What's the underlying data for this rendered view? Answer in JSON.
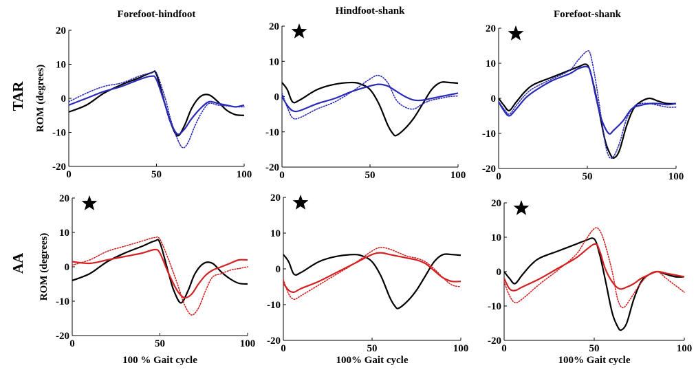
{
  "chart_data": [
    {
      "type": "line",
      "group": "TAR",
      "title": "Forefoot-hindfoot",
      "ylabel": "ROM (degrees)",
      "xlabel": "",
      "xlim": [
        0,
        100
      ],
      "ylim": [
        -20,
        20
      ],
      "xticks": [
        0,
        50,
        100
      ],
      "yticks": [
        -20,
        -10,
        0,
        10,
        20
      ],
      "significance_star": false,
      "series": [
        {
          "color": "#000000",
          "dash": "solid",
          "x": [
            0,
            10,
            20,
            30,
            40,
            47,
            50,
            55,
            58,
            62,
            66,
            70,
            75,
            80,
            85,
            90,
            95,
            100
          ],
          "y": [
            -4,
            -2,
            1.5,
            4,
            6,
            7.5,
            7,
            -2,
            -7,
            -11,
            -8,
            -3,
            0.5,
            1,
            -1,
            -3.5,
            -4.8,
            -5
          ]
        },
        {
          "color": "#2a2ab8",
          "dash": "solid",
          "x": [
            0,
            10,
            20,
            30,
            40,
            47,
            50,
            55,
            58,
            62,
            66,
            70,
            75,
            80,
            85,
            90,
            95,
            100
          ],
          "y": [
            -2,
            0,
            2,
            3.5,
            5.5,
            6.5,
            5.5,
            -2,
            -7,
            -10.5,
            -9,
            -6,
            -3,
            -1,
            -1.5,
            -2,
            -2.5,
            -2
          ]
        },
        {
          "color": "#2a2ab8",
          "dash": "dotted",
          "x": [
            0,
            10,
            20,
            30,
            40,
            47,
            50,
            55,
            58,
            62,
            65,
            68,
            72,
            76,
            80,
            85,
            90,
            95,
            100
          ],
          "y": [
            -1,
            1.5,
            3.5,
            4.5,
            6.5,
            7.5,
            7.5,
            0,
            -6,
            -12,
            -14.5,
            -13,
            -8,
            -4,
            -1.5,
            -2,
            -2.2,
            -2.5,
            -2.5
          ]
        }
      ]
    },
    {
      "type": "line",
      "group": "TAR",
      "title": "Hindfoot-shank",
      "ylabel": "",
      "xlabel": "",
      "xlim": [
        0,
        100
      ],
      "ylim": [
        -20,
        20
      ],
      "xticks": [
        0,
        50,
        100
      ],
      "yticks": [
        -20,
        -10,
        0,
        10,
        20
      ],
      "significance_star": true,
      "series": [
        {
          "color": "#000000",
          "dash": "solid",
          "x": [
            0,
            3,
            6,
            10,
            20,
            30,
            40,
            45,
            50,
            55,
            60,
            63,
            65,
            70,
            75,
            80,
            85,
            90,
            95,
            100
          ],
          "y": [
            4,
            2,
            -1.5,
            -1,
            2,
            3.5,
            4,
            3.5,
            2,
            -2,
            -8,
            -10.5,
            -11,
            -9,
            -6,
            -2,
            2,
            4,
            4,
            3.8
          ]
        },
        {
          "color": "#2a2ab8",
          "dash": "solid",
          "x": [
            0,
            3,
            6,
            10,
            20,
            30,
            40,
            50,
            55,
            60,
            65,
            70,
            75,
            80,
            85,
            90,
            95,
            100
          ],
          "y": [
            0,
            -2.5,
            -4,
            -4,
            -2,
            -0.5,
            1.5,
            3,
            3.5,
            3,
            1.5,
            0,
            -1,
            -1,
            -0.5,
            0,
            0.5,
            1
          ]
        },
        {
          "color": "#2a2ab8",
          "dash": "dotted",
          "x": [
            0,
            3,
            6,
            10,
            20,
            30,
            40,
            50,
            55,
            60,
            65,
            70,
            75,
            80,
            85,
            90,
            95,
            100
          ],
          "y": [
            1,
            -3,
            -6,
            -6,
            -3.5,
            -1.5,
            1.5,
            5,
            6,
            4,
            -1,
            -3,
            -3.5,
            -2,
            -1,
            -0.5,
            0,
            0.2
          ]
        }
      ]
    },
    {
      "type": "line",
      "group": "TAR",
      "title": "Forefoot-shank",
      "ylabel": "",
      "xlabel": "",
      "xlim": [
        0,
        100
      ],
      "ylim": [
        -20,
        20
      ],
      "xticks": [
        0,
        50,
        100
      ],
      "yticks": [
        -20,
        -10,
        0,
        10,
        20
      ],
      "significance_star": true,
      "series": [
        {
          "color": "#000000",
          "dash": "solid",
          "x": [
            0,
            3,
            6,
            10,
            15,
            20,
            30,
            40,
            45,
            50,
            53,
            56,
            60,
            63,
            65,
            68,
            72,
            76,
            80,
            85,
            90,
            95,
            100
          ],
          "y": [
            0,
            -2,
            -3.5,
            -1,
            2,
            4,
            6,
            8,
            9,
            9.5,
            5,
            -2,
            -12,
            -16,
            -17,
            -15,
            -8,
            -3,
            -1,
            0,
            -0.8,
            -1.5,
            -1.5
          ]
        },
        {
          "color": "#2a2ab8",
          "dash": "solid",
          "x": [
            0,
            3,
            6,
            10,
            15,
            20,
            30,
            40,
            45,
            50,
            52,
            55,
            58,
            62,
            65,
            70,
            75,
            80,
            85,
            90,
            95,
            100
          ],
          "y": [
            -1,
            -3.5,
            -5,
            -3,
            0,
            2,
            5,
            7,
            8.5,
            9,
            7,
            0,
            -6,
            -10,
            -9,
            -6.5,
            -3,
            -2,
            -1.5,
            -1.5,
            -1.8,
            -1.5
          ]
        },
        {
          "color": "#2a2ab8",
          "dash": "dotted",
          "x": [
            0,
            3,
            6,
            10,
            15,
            20,
            30,
            40,
            45,
            50,
            52,
            55,
            58,
            61,
            64,
            68,
            72,
            76,
            80,
            85,
            90,
            95,
            100
          ],
          "y": [
            -1,
            -3,
            -4.5,
            -2,
            1,
            3,
            5.5,
            8,
            11,
            13.5,
            12,
            4,
            -6,
            -15,
            -17,
            -13,
            -6,
            -2.5,
            -1.5,
            -1.5,
            -2,
            -2.5,
            -2.5
          ]
        }
      ]
    },
    {
      "type": "line",
      "group": "AA",
      "title": "",
      "ylabel": "ROM (degrees)",
      "xlabel": "100 % Gait cycle",
      "xlim": [
        0,
        100
      ],
      "ylim": [
        -20,
        20
      ],
      "xticks": [
        0,
        50,
        100
      ],
      "yticks": [
        -20,
        -10,
        0,
        10,
        20
      ],
      "significance_star": true,
      "series": [
        {
          "color": "#000000",
          "dash": "solid",
          "x": [
            0,
            10,
            20,
            30,
            40,
            47,
            50,
            55,
            58,
            62,
            66,
            70,
            75,
            80,
            85,
            90,
            95,
            100
          ],
          "y": [
            -4,
            -2,
            1.5,
            4,
            6,
            7.5,
            7,
            -2,
            -7,
            -10.5,
            -7,
            -2,
            1,
            1,
            -1.5,
            -3.5,
            -4.8,
            -5
          ]
        },
        {
          "color": "#d42020",
          "dash": "solid",
          "x": [
            0,
            10,
            20,
            30,
            40,
            47,
            50,
            55,
            60,
            64,
            68,
            72,
            76,
            80,
            85,
            90,
            95,
            100
          ],
          "y": [
            1.5,
            1,
            2,
            3,
            4,
            5,
            4,
            -2,
            -7,
            -9,
            -8,
            -5,
            -2.5,
            -1,
            0,
            1,
            2,
            2
          ]
        },
        {
          "color": "#d42020",
          "dash": "dotted",
          "x": [
            0,
            10,
            20,
            30,
            40,
            47,
            50,
            55,
            60,
            64,
            68,
            72,
            76,
            80,
            85,
            90,
            95,
            100
          ],
          "y": [
            0.5,
            2,
            4.5,
            6,
            7.5,
            8.5,
            8,
            2,
            -5,
            -11,
            -14,
            -12,
            -7,
            -3,
            -2,
            -1,
            -0.5,
            0
          ]
        }
      ]
    },
    {
      "type": "line",
      "group": "AA",
      "title": "",
      "ylabel": "",
      "xlabel": "100% Gait cycle",
      "xlim": [
        0,
        100
      ],
      "ylim": [
        -20,
        20
      ],
      "xticks": [
        0,
        50,
        100
      ],
      "yticks": [
        -20,
        -10,
        0,
        10,
        20
      ],
      "significance_star": true,
      "series": [
        {
          "color": "#000000",
          "dash": "solid",
          "x": [
            0,
            3,
            6,
            10,
            20,
            30,
            40,
            45,
            50,
            55,
            60,
            63,
            65,
            70,
            75,
            80,
            85,
            90,
            95,
            100
          ],
          "y": [
            4,
            2,
            -1.5,
            -1,
            2,
            3.5,
            4,
            3.5,
            2,
            -2,
            -8,
            -10.5,
            -11,
            -9,
            -6,
            -2,
            2,
            4,
            4,
            3.8
          ]
        },
        {
          "color": "#d42020",
          "dash": "solid",
          "x": [
            0,
            3,
            6,
            10,
            20,
            30,
            40,
            50,
            55,
            60,
            65,
            70,
            75,
            80,
            85,
            90,
            95,
            100
          ],
          "y": [
            -4,
            -6,
            -6.5,
            -5.5,
            -3.5,
            -1,
            1.5,
            4,
            4.5,
            4,
            3.5,
            3,
            2.5,
            1.5,
            -0.5,
            -2.5,
            -3.5,
            -3.5
          ]
        },
        {
          "color": "#d42020",
          "dash": "dotted",
          "x": [
            0,
            3,
            6,
            10,
            20,
            30,
            40,
            50,
            55,
            60,
            65,
            70,
            75,
            80,
            85,
            90,
            95,
            100
          ],
          "y": [
            -3,
            -7,
            -8.5,
            -7.5,
            -4.5,
            -1.5,
            1.5,
            5,
            6,
            5.5,
            4.5,
            3.5,
            3,
            2,
            0,
            -2.5,
            -4.5,
            -5
          ]
        }
      ]
    },
    {
      "type": "line",
      "group": "AA",
      "title": "",
      "ylabel": "",
      "xlabel": "100% Gait cycle",
      "xlim": [
        0,
        100
      ],
      "ylim": [
        -20,
        20
      ],
      "xticks": [
        0,
        50,
        100
      ],
      "yticks": [
        -20,
        -10,
        0,
        10,
        20
      ],
      "significance_star": true,
      "series": [
        {
          "color": "#000000",
          "dash": "solid",
          "x": [
            0,
            3,
            6,
            10,
            15,
            20,
            30,
            40,
            45,
            50,
            53,
            56,
            60,
            63,
            65,
            68,
            72,
            76,
            80,
            85,
            90,
            95,
            100
          ],
          "y": [
            0,
            -2,
            -3.5,
            -1,
            2,
            4,
            6,
            8,
            9,
            9.5,
            5,
            -2,
            -12,
            -16,
            -17,
            -15,
            -8,
            -3,
            -1,
            0,
            -0.8,
            -1.5,
            -1.5
          ]
        },
        {
          "color": "#d42020",
          "dash": "solid",
          "x": [
            0,
            3,
            6,
            10,
            20,
            30,
            40,
            50,
            53,
            56,
            60,
            64,
            68,
            72,
            76,
            80,
            85,
            90,
            95,
            100
          ],
          "y": [
            -2,
            -5,
            -5.5,
            -4.5,
            -2,
            1,
            4,
            8,
            6,
            1,
            -3,
            -5,
            -4.5,
            -3.5,
            -2,
            -1,
            0,
            -0.5,
            -1,
            -1.5
          ]
        },
        {
          "color": "#d42020",
          "dash": "dotted",
          "x": [
            0,
            3,
            6,
            10,
            20,
            30,
            40,
            45,
            50,
            53,
            56,
            60,
            63,
            66,
            70,
            75,
            80,
            85,
            90,
            95,
            100
          ],
          "y": [
            -3,
            -7,
            -9,
            -8,
            -3.5,
            0.5,
            5,
            9,
            12.5,
            12,
            8,
            0,
            -8,
            -10.5,
            -8,
            -4,
            -1,
            0,
            -2,
            -4,
            -6
          ]
        }
      ]
    }
  ],
  "row_labels": [
    "TAR",
    "AA"
  ]
}
